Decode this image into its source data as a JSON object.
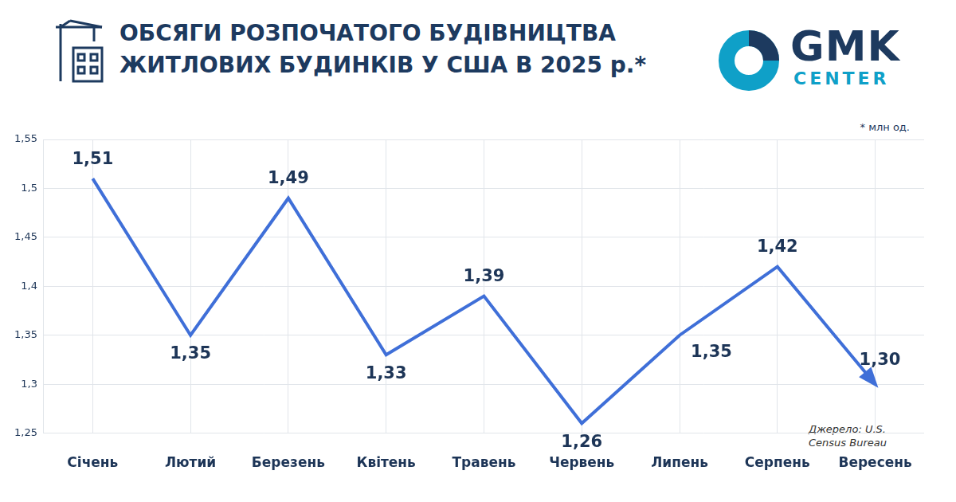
{
  "chart_data": {
    "type": "line",
    "title": "ОБСЯГИ РОЗПОЧАТОГО БУДІВНИЦТВА ЖИТЛОВИХ БУДИНКІВ У США В 2025 р.*",
    "unit_note": "* млн од.",
    "source": "Джерело: U.S. Census Bureau",
    "categories": [
      "Січень",
      "Лютий",
      "Березень",
      "Квітень",
      "Травень",
      "Червень",
      "Липень",
      "Серпень",
      "Вересень"
    ],
    "values": [
      1.51,
      1.35,
      1.49,
      1.33,
      1.39,
      1.26,
      1.35,
      1.42,
      1.3
    ],
    "value_labels": [
      "1,51",
      "1,35",
      "1,49",
      "1,33",
      "1,39",
      "1,26",
      "1,35",
      "1,42",
      "1,30"
    ],
    "color": "#3f6fd8",
    "ylim": [
      1.25,
      1.55
    ],
    "yticks": [
      {
        "value": 1.25,
        "label": "1,25"
      },
      {
        "value": 1.3,
        "label": "1,3"
      },
      {
        "value": 1.35,
        "label": "1,35"
      },
      {
        "value": 1.4,
        "label": "1,4"
      },
      {
        "value": 1.45,
        "label": "1,45"
      },
      {
        "value": 1.5,
        "label": "1,5"
      },
      {
        "value": 1.55,
        "label": "1,55"
      }
    ],
    "grid": true,
    "data_labels": true
  },
  "logo": {
    "name": "GMK",
    "subtitle": "CENTER"
  }
}
